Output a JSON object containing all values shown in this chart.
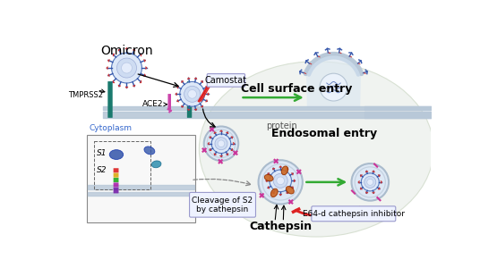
{
  "background_color": "#ffffff",
  "cell_bg_color": "#e8ede8",
  "membrane_color": "#b8c8d8",
  "teal_color": "#1a7a6e",
  "virus_body_color": "#dde8f8",
  "virus_stroke": "#5577bb",
  "virus_spike_color": "#3355aa",
  "virus_spike_tip": "#cc3333",
  "pink_color": "#cc3399",
  "red_color": "#dd2222",
  "green_color": "#33aa33",
  "cathepsin_color": "#cc6622",
  "title": "Omicron",
  "label_cell_surface": "Cell surface entry",
  "label_endosomal": "Endosomal entry",
  "label_camostat": "Camostat",
  "label_cathepsin": "Cathepsin",
  "label_cleavage": "Cleavage of S2\nby cathepsin",
  "label_e64d": "E64-d cathepsin inhibitor",
  "label_tmprss2": "TMPRSS2",
  "label_ace2": "ACE2",
  "label_cytoplasm": "Cytoplasm",
  "label_protein": "protein",
  "label_s1": "S1",
  "label_s2": "S2"
}
